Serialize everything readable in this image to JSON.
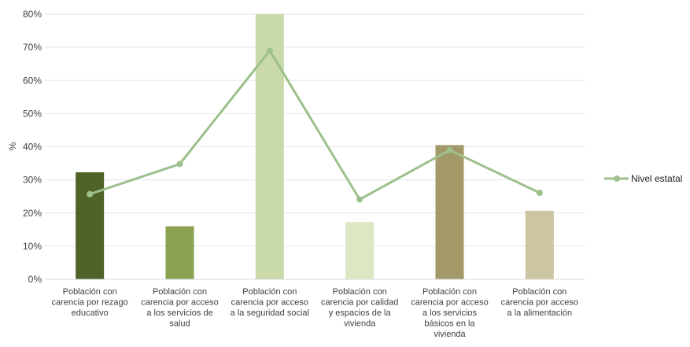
{
  "chart_data": {
    "type": "bar",
    "ylabel": "%",
    "ylim": [
      0,
      80
    ],
    "yticks": [
      0,
      10,
      20,
      30,
      40,
      50,
      60,
      70,
      80
    ],
    "ytick_labels": [
      "0%",
      "10%",
      "20%",
      "30%",
      "40%",
      "50%",
      "60%",
      "70%",
      "80%"
    ],
    "grid": true,
    "legend": "right",
    "categories": [
      [
        "Población con",
        "carencia por rezago",
        "educativo"
      ],
      [
        "Población con",
        "carencia por acceso",
        "a los servicios de",
        "salud"
      ],
      [
        "Población con",
        "carencia por acceso",
        "a la seguridad social"
      ],
      [
        "Población con",
        "carencia por calidad",
        "y espacios de la",
        "vivienda"
      ],
      [
        "Población con",
        "carencia por acceso",
        "a los servicios",
        "básicos en la",
        "vivienda"
      ],
      [
        "Población con",
        "carencia por acceso",
        "a la alimentación"
      ]
    ],
    "bar_values": [
      32.3,
      16.0,
      80.0,
      17.3,
      40.5,
      20.7
    ],
    "bar_colors": [
      "#4f6228",
      "#8aa252",
      "#c9d9a7",
      "#dee7c4",
      "#a29868",
      "#ccc5a1"
    ],
    "series": [
      {
        "name": "Nivel estatal",
        "type": "line",
        "color": "#9dc08b",
        "values": [
          25.7,
          34.8,
          69.0,
          24.1,
          39.0,
          26.1
        ]
      }
    ]
  }
}
